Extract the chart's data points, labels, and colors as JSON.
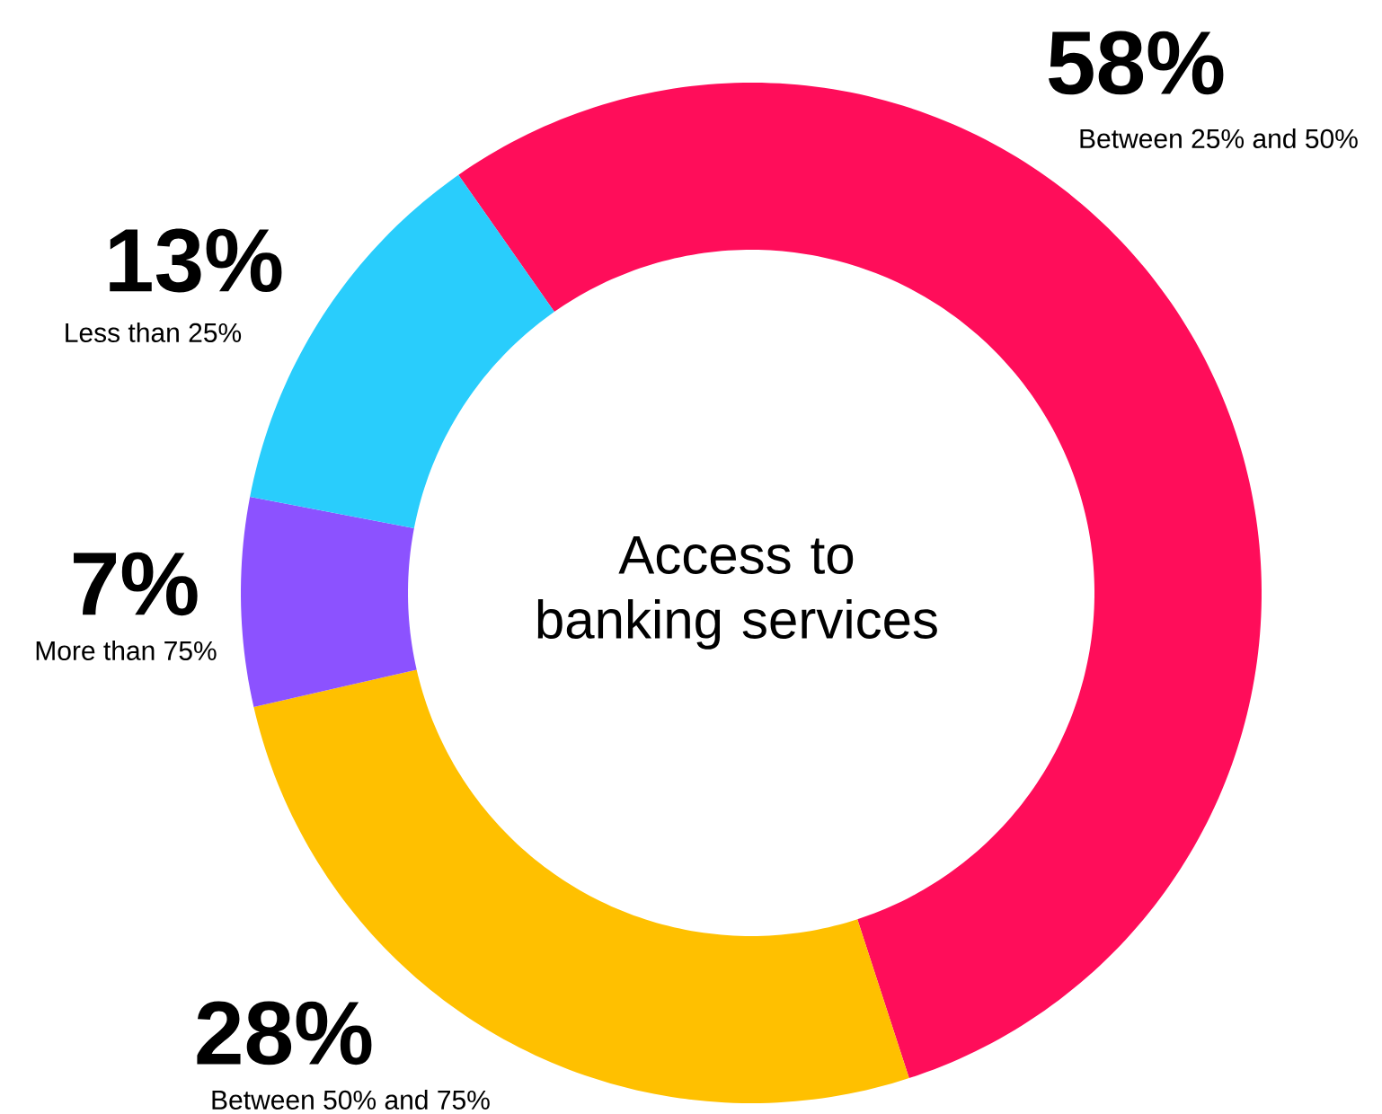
{
  "chart_data": {
    "type": "donut",
    "title": "Access to banking services",
    "categories": [
      "Between 25% and 50%",
      "Between 50% and 75%",
      "More than 75%",
      "Less than 25%"
    ],
    "values": [
      58,
      28,
      7,
      13
    ],
    "colors": [
      "#ff0d5a",
      "#ffc000",
      "#8c52ff",
      "#29cdfc"
    ],
    "value_labels": [
      "58%",
      "28%",
      "7%",
      "13%"
    ]
  }
}
